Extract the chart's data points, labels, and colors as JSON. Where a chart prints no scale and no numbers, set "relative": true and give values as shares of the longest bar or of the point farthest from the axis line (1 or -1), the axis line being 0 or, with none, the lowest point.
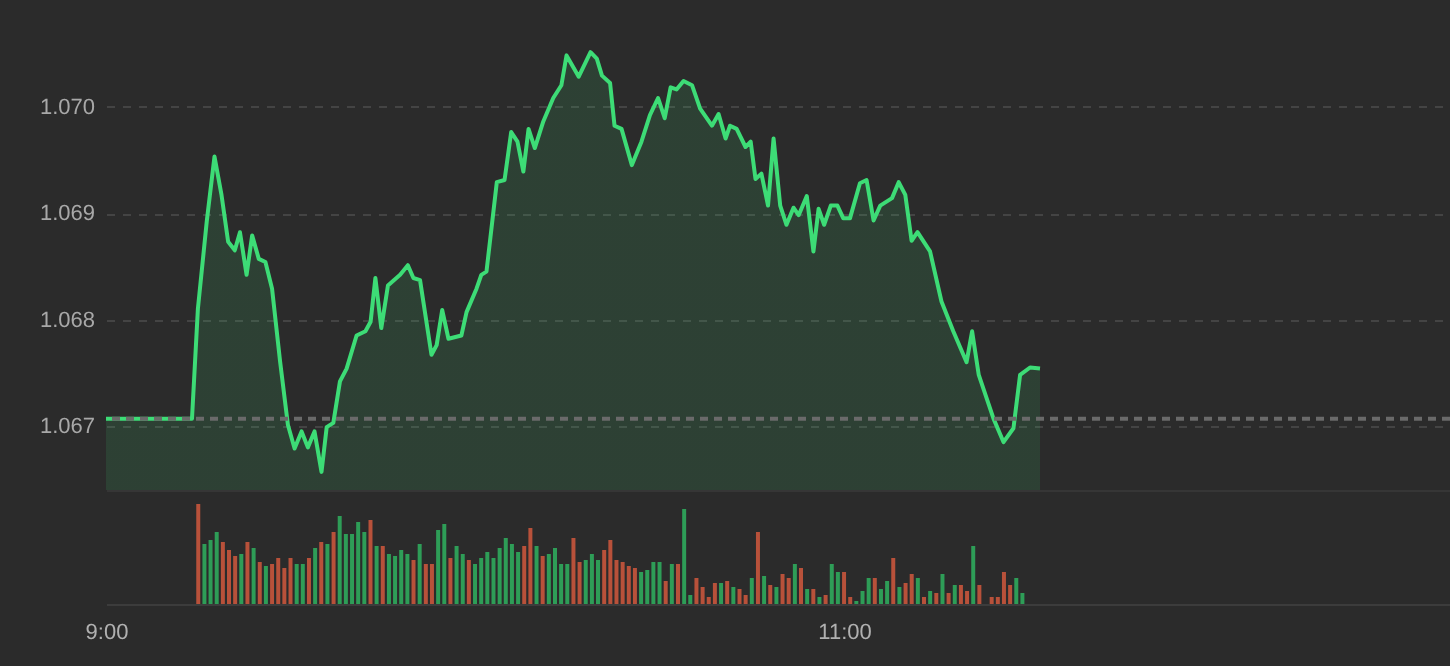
{
  "chart_data": [
    {
      "type": "area",
      "xlim": [
        9,
        12.642
      ],
      "ylim": [
        1.0664,
        1.071
      ],
      "yticks": [
        1.067,
        {
          "value": 1.068,
          "label": "1.068"
        },
        1.069,
        {
          "value": 1.07,
          "label": "1.070"
        }
      ],
      "tick_labels": "y",
      "grid": "y",
      "ref_lines": [
        {
          "axis": "y",
          "value": 1.06707,
          "color": "#6a6a6a",
          "line_style": "dashed"
        }
      ],
      "series": [
        {
          "color": "#3ddc76",
          "x": [
            9.0,
            9.233,
            9.249,
            9.273,
            9.294,
            9.313,
            9.331,
            9.349,
            9.363,
            9.381,
            9.396,
            9.414,
            9.432,
            9.45,
            9.472,
            9.493,
            9.511,
            9.53,
            9.547,
            9.565,
            9.584,
            9.598,
            9.616,
            9.634,
            9.652,
            9.679,
            9.703,
            9.717,
            9.73,
            9.746,
            9.764,
            9.797,
            9.818,
            9.833,
            9.851,
            9.882,
            9.896,
            9.911,
            9.928,
            9.963,
            9.977,
            10.004,
            10.017,
            10.031,
            10.059,
            10.08,
            10.098,
            10.115,
            10.131,
            10.145,
            10.162,
            10.185,
            10.212,
            10.234,
            10.248,
            10.281,
            10.313,
            10.33,
            10.344,
            10.366,
            10.378,
            10.397,
            10.425,
            10.451,
            10.474,
            10.496,
            10.514,
            10.53,
            10.546,
            10.565,
            10.588,
            10.61,
            10.642,
            10.66,
            10.679,
            10.691,
            10.709,
            10.733,
            10.747,
            10.76,
            10.776,
            10.794,
            10.809,
            10.827,
            10.844,
            10.863,
            10.877,
            10.899,
            10.917,
            10.931,
            10.946,
            10.964,
            10.982,
            10.998,
            11.016,
            11.043,
            11.061,
            11.08,
            11.098,
            11.13,
            11.148,
            11.166,
            11.183,
            11.199,
            11.233,
            11.264,
            11.296,
            11.332,
            11.347,
            11.365,
            11.405,
            11.432,
            11.459,
            11.477,
            11.504,
            11.531
          ],
          "values": [
            1.06707,
            1.06707,
            1.0681,
            1.06892,
            1.06953,
            1.06917,
            1.06873,
            1.06865,
            1.06882,
            1.06842,
            1.06879,
            1.06857,
            1.06854,
            1.06829,
            1.0676,
            1.06701,
            1.06679,
            1.06695,
            1.0668,
            1.06695,
            1.06657,
            1.06699,
            1.06703,
            1.06742,
            1.06754,
            1.06785,
            1.06789,
            1.06798,
            1.06839,
            1.06792,
            1.06832,
            1.06842,
            1.06851,
            1.06839,
            1.06837,
            1.06767,
            1.06776,
            1.06809,
            1.06782,
            1.06785,
            1.06807,
            1.06829,
            1.06842,
            1.06845,
            1.06929,
            1.06931,
            1.06976,
            1.06967,
            1.06939,
            1.06979,
            1.06961,
            1.06986,
            1.07008,
            1.0702,
            1.07048,
            1.07028,
            1.07051,
            1.07045,
            1.07029,
            1.07022,
            1.06982,
            1.06979,
            1.06945,
            1.06967,
            1.06992,
            1.07008,
            1.06989,
            1.07018,
            1.07016,
            1.07024,
            1.0702,
            1.06998,
            1.06982,
            1.06993,
            1.0697,
            1.06982,
            1.06979,
            1.06962,
            1.06967,
            1.06932,
            1.06937,
            1.06907,
            1.0697,
            1.06907,
            1.06889,
            1.06905,
            1.06898,
            1.06916,
            1.06864,
            1.06904,
            1.06889,
            1.06907,
            1.06907,
            1.06895,
            1.06895,
            1.06928,
            1.06931,
            1.06893,
            1.06907,
            1.06914,
            1.06929,
            1.06917,
            1.06874,
            1.06882,
            1.06864,
            1.06817,
            1.06789,
            1.0676,
            1.06789,
            1.06748,
            1.06707,
            1.06685,
            1.06698,
            1.06748,
            1.06755,
            1.06754
          ]
        }
      ]
    },
    {
      "type": "bar",
      "relative": true,
      "xlim": [
        9,
        12.642
      ],
      "xticks": [
        {
          "value": 9,
          "label": "9:00"
        },
        {
          "value": 11,
          "label": "11:00"
        }
      ],
      "tick_labels": "x",
      "x": [
        9.25,
        9.2667,
        9.2833,
        9.3,
        9.3167,
        9.3333,
        9.35,
        9.3667,
        9.3833,
        9.4,
        9.4167,
        9.4333,
        9.45,
        9.4667,
        9.4833,
        9.5,
        9.5167,
        9.5333,
        9.55,
        9.5667,
        9.5833,
        9.6,
        9.6167,
        9.6333,
        9.65,
        9.6667,
        9.6833,
        9.7,
        9.7167,
        9.7333,
        9.75,
        9.7667,
        9.7833,
        9.8,
        9.8167,
        9.8333,
        9.85,
        9.8667,
        9.8833,
        9.9,
        9.9167,
        9.9333,
        9.95,
        9.9667,
        9.9833,
        10,
        10.0167,
        10.0333,
        10.05,
        10.0667,
        10.0833,
        10.1,
        10.1167,
        10.1333,
        10.15,
        10.1667,
        10.1833,
        10.2,
        10.2167,
        10.2333,
        10.25,
        10.2667,
        10.2833,
        10.3,
        10.3167,
        10.3333,
        10.35,
        10.3667,
        10.3833,
        10.4,
        10.4167,
        10.4333,
        10.45,
        10.4667,
        10.4833,
        10.5,
        10.5167,
        10.5333,
        10.55,
        10.5667,
        10.5833,
        10.6,
        10.6167,
        10.6333,
        10.65,
        10.6667,
        10.6833,
        10.7,
        10.7167,
        10.7333,
        10.75,
        10.7667,
        10.7833,
        10.8,
        10.8167,
        10.8333,
        10.85,
        10.8667,
        10.8833,
        10.9,
        10.9167,
        10.9333,
        10.95,
        10.9667,
        10.9833,
        11,
        11.0167,
        11.0333,
        11.05,
        11.0667,
        11.0833,
        11.1,
        11.1167,
        11.1333,
        11.15,
        11.1667,
        11.1833,
        11.2,
        11.2167,
        11.2333,
        11.25,
        11.2667,
        11.2833,
        11.3,
        11.3167,
        11.3333,
        11.35,
        11.3667,
        11.3833,
        11.4,
        11.4167,
        11.4333,
        11.45,
        11.4667,
        11.4833
      ],
      "values": [
        1,
        0.6,
        0.64,
        0.72,
        0.62,
        0.54,
        0.48,
        0.5,
        0.62,
        0.56,
        0.42,
        0.38,
        0.4,
        0.46,
        0.36,
        0.46,
        0.4,
        0.4,
        0.46,
        0.56,
        0.62,
        0.6,
        0.72,
        0.88,
        0.7,
        0.7,
        0.82,
        0.72,
        0.84,
        0.58,
        0.58,
        0.5,
        0.48,
        0.54,
        0.5,
        0.44,
        0.6,
        0.4,
        0.4,
        0.74,
        0.8,
        0.46,
        0.58,
        0.5,
        0.44,
        0.4,
        0.46,
        0.52,
        0.46,
        0.56,
        0.66,
        0.6,
        0.52,
        0.58,
        0.76,
        0.58,
        0.48,
        0.5,
        0.56,
        0.4,
        0.4,
        0.66,
        0.42,
        0.44,
        0.5,
        0.44,
        0.54,
        0.64,
        0.44,
        0.42,
        0.38,
        0.36,
        0.32,
        0.34,
        0.42,
        0.42,
        0.23,
        0.4,
        0.4,
        0.95,
        0.09,
        0.26,
        0.17,
        0.07,
        0.21,
        0.21,
        0.23,
        0.17,
        0.15,
        0.09,
        0.26,
        0.72,
        0.28,
        0.19,
        0.17,
        0.3,
        0.26,
        0.4,
        0.36,
        0.15,
        0.15,
        0.07,
        0.09,
        0.4,
        0.32,
        0.32,
        0.07,
        0.03,
        0.13,
        0.26,
        0.26,
        0.15,
        0.23,
        0.46,
        0.17,
        0.21,
        0.3,
        0.26,
        0.07,
        0.13,
        0.11,
        0.3,
        0.11,
        0.19,
        0.19,
        0.13,
        0.58,
        0.19,
        null,
        0.07,
        0.07,
        0.32,
        0.19,
        0.26,
        0.11
      ],
      "colors": [
        "#b8513a",
        "#2e9d57",
        "#2e9d57",
        "#2e9d57",
        "#b8513a",
        "#b8513a",
        "#b8513a",
        "#2e9d57",
        "#b8513a",
        "#2e9d57",
        "#b8513a",
        "#2e9d57",
        "#b8513a",
        "#b8513a",
        "#b8513a",
        "#b8513a",
        "#2e9d57",
        "#2e9d57",
        "#b8513a",
        "#2e9d57",
        "#b8513a",
        "#2e9d57",
        "#b8513a",
        "#2e9d57",
        "#2e9d57",
        "#2e9d57",
        "#2e9d57",
        "#2e9d57",
        "#b8513a",
        "#2e9d57",
        "#b8513a",
        "#2e9d57",
        "#2e9d57",
        "#2e9d57",
        "#2e9d57",
        "#b8513a",
        "#2e9d57",
        "#b8513a",
        "#b8513a",
        "#2e9d57",
        "#2e9d57",
        "#b8513a",
        "#2e9d57",
        "#2e9d57",
        "#b8513a",
        "#2e9d57",
        "#2e9d57",
        "#2e9d57",
        "#2e9d57",
        "#2e9d57",
        "#2e9d57",
        "#2e9d57",
        "#2e9d57",
        "#b8513a",
        "#b8513a",
        "#2e9d57",
        "#b8513a",
        "#2e9d57",
        "#2e9d57",
        "#2e9d57",
        "#2e9d57",
        "#b8513a",
        "#b8513a",
        "#2e9d57",
        "#2e9d57",
        "#2e9d57",
        "#b8513a",
        "#b8513a",
        "#b8513a",
        "#b8513a",
        "#b8513a",
        "#b8513a",
        "#2e9d57",
        "#2e9d57",
        "#2e9d57",
        "#2e9d57",
        "#b8513a",
        "#2e9d57",
        "#b8513a",
        "#2e9d57",
        "#2e9d57",
        "#b8513a",
        "#b8513a",
        "#b8513a",
        "#b8513a",
        "#2e9d57",
        "#b8513a",
        "#2e9d57",
        "#b8513a",
        "#b8513a",
        "#2e9d57",
        "#b8513a",
        "#2e9d57",
        "#b8513a",
        "#2e9d57",
        "#b8513a",
        "#b8513a",
        "#2e9d57",
        "#b8513a",
        "#2e9d57",
        "#b8513a",
        "#2e9d57",
        "#b8513a",
        "#2e9d57",
        "#2e9d57",
        "#b8513a",
        "#b8513a",
        "#2e9d57",
        "#2e9d57",
        "#2e9d57",
        "#b8513a",
        "#2e9d57",
        "#2e9d57",
        "#b8513a",
        "#2e9d57",
        "#b8513a",
        "#b8513a",
        "#2e9d57",
        "#b8513a",
        "#2e9d57",
        "#b8513a",
        "#2e9d57",
        "#b8513a",
        "#2e9d57",
        "#b8513a",
        "#b8513a",
        "#2e9d57",
        "#b8513a",
        "#b8513a",
        "#b8513a",
        "#b8513a",
        "#b8513a",
        "#b8513a",
        "#2e9d57",
        "#2e9d57"
      ]
    }
  ]
}
